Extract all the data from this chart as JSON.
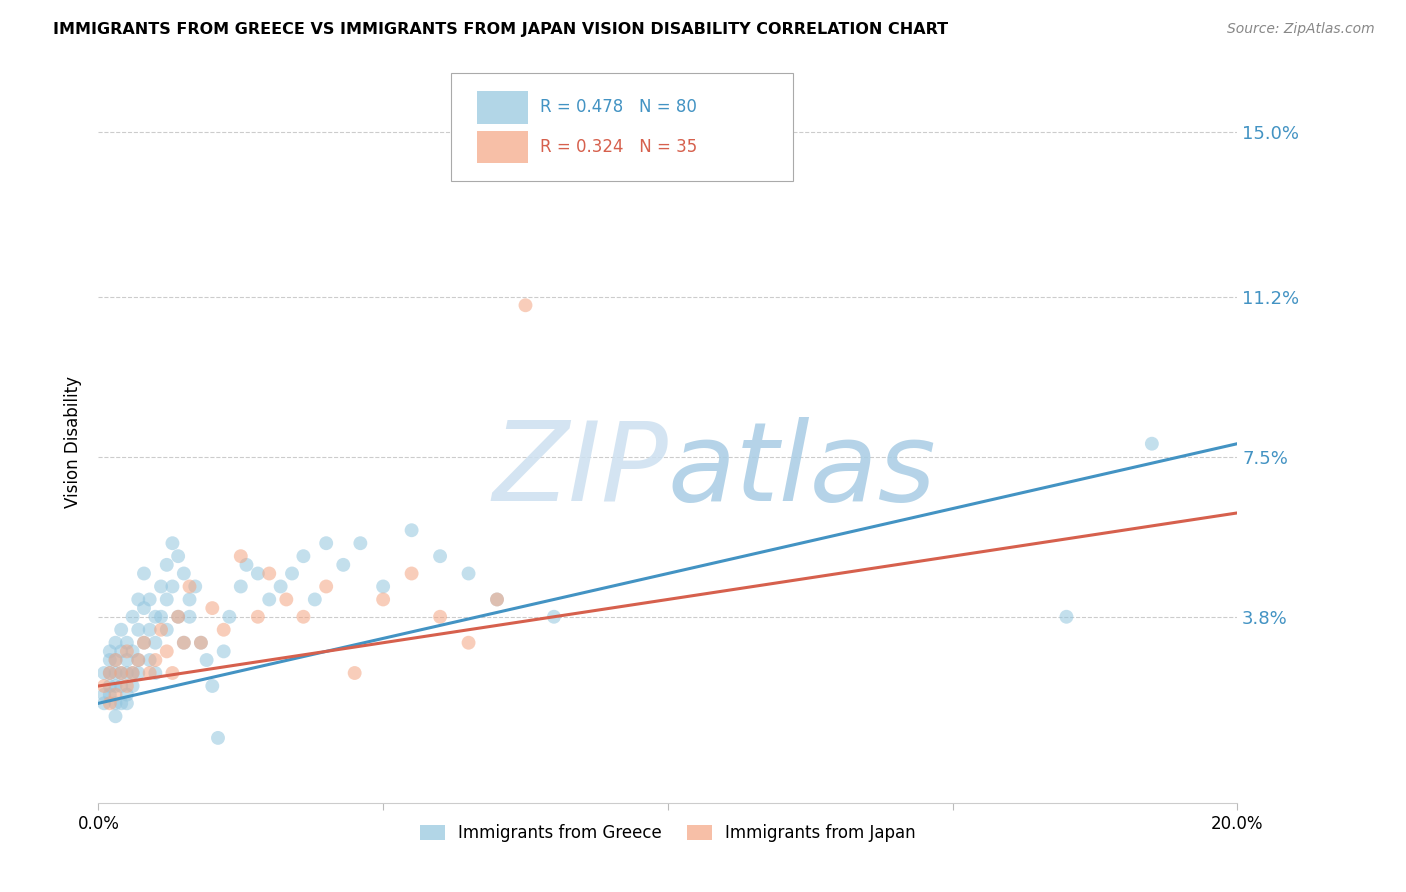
{
  "title": "IMMIGRANTS FROM GREECE VS IMMIGRANTS FROM JAPAN VISION DISABILITY CORRELATION CHART",
  "source": "Source: ZipAtlas.com",
  "ylabel": "Vision Disability",
  "ytick_labels": [
    "15.0%",
    "11.2%",
    "7.5%",
    "3.8%"
  ],
  "ytick_values": [
    0.15,
    0.112,
    0.075,
    0.038
  ],
  "xlim": [
    0.0,
    0.2
  ],
  "ylim": [
    -0.005,
    0.162
  ],
  "legend1_R": "0.478",
  "legend1_N": "80",
  "legend2_R": "0.324",
  "legend2_N": "35",
  "blue_color": "#92c5de",
  "blue_line_color": "#4393c3",
  "pink_color": "#f4a582",
  "pink_line_color": "#d6604d",
  "blue_scatter_x": [
    0.001,
    0.001,
    0.001,
    0.002,
    0.002,
    0.002,
    0.002,
    0.002,
    0.003,
    0.003,
    0.003,
    0.003,
    0.003,
    0.003,
    0.004,
    0.004,
    0.004,
    0.004,
    0.004,
    0.005,
    0.005,
    0.005,
    0.005,
    0.005,
    0.006,
    0.006,
    0.006,
    0.006,
    0.007,
    0.007,
    0.007,
    0.007,
    0.008,
    0.008,
    0.008,
    0.009,
    0.009,
    0.009,
    0.01,
    0.01,
    0.01,
    0.011,
    0.011,
    0.012,
    0.012,
    0.012,
    0.013,
    0.013,
    0.014,
    0.014,
    0.015,
    0.015,
    0.016,
    0.016,
    0.017,
    0.018,
    0.019,
    0.02,
    0.021,
    0.022,
    0.023,
    0.025,
    0.026,
    0.028,
    0.03,
    0.032,
    0.034,
    0.036,
    0.038,
    0.04,
    0.043,
    0.046,
    0.05,
    0.055,
    0.06,
    0.065,
    0.07,
    0.08,
    0.17,
    0.185
  ],
  "blue_scatter_y": [
    0.02,
    0.025,
    0.018,
    0.022,
    0.028,
    0.025,
    0.02,
    0.03,
    0.025,
    0.018,
    0.022,
    0.028,
    0.032,
    0.015,
    0.025,
    0.03,
    0.022,
    0.018,
    0.035,
    0.025,
    0.028,
    0.02,
    0.032,
    0.018,
    0.03,
    0.025,
    0.038,
    0.022,
    0.035,
    0.028,
    0.042,
    0.025,
    0.04,
    0.032,
    0.048,
    0.042,
    0.035,
    0.028,
    0.038,
    0.032,
    0.025,
    0.045,
    0.038,
    0.05,
    0.042,
    0.035,
    0.055,
    0.045,
    0.052,
    0.038,
    0.048,
    0.032,
    0.042,
    0.038,
    0.045,
    0.032,
    0.028,
    0.022,
    0.01,
    0.03,
    0.038,
    0.045,
    0.05,
    0.048,
    0.042,
    0.045,
    0.048,
    0.052,
    0.042,
    0.055,
    0.05,
    0.055,
    0.045,
    0.058,
    0.052,
    0.048,
    0.042,
    0.038,
    0.038,
    0.078
  ],
  "pink_scatter_x": [
    0.001,
    0.002,
    0.002,
    0.003,
    0.003,
    0.004,
    0.005,
    0.005,
    0.006,
    0.007,
    0.008,
    0.009,
    0.01,
    0.011,
    0.012,
    0.013,
    0.014,
    0.015,
    0.016,
    0.018,
    0.02,
    0.022,
    0.025,
    0.028,
    0.03,
    0.033,
    0.036,
    0.04,
    0.045,
    0.05,
    0.055,
    0.06,
    0.065,
    0.07,
    0.075
  ],
  "pink_scatter_y": [
    0.022,
    0.025,
    0.018,
    0.02,
    0.028,
    0.025,
    0.022,
    0.03,
    0.025,
    0.028,
    0.032,
    0.025,
    0.028,
    0.035,
    0.03,
    0.025,
    0.038,
    0.032,
    0.045,
    0.032,
    0.04,
    0.035,
    0.052,
    0.038,
    0.048,
    0.042,
    0.038,
    0.045,
    0.025,
    0.042,
    0.048,
    0.038,
    0.032,
    0.042,
    0.11
  ],
  "blue_line_y_start": 0.018,
  "blue_line_y_end": 0.078,
  "pink_line_y_start": 0.022,
  "pink_line_y_end": 0.062
}
